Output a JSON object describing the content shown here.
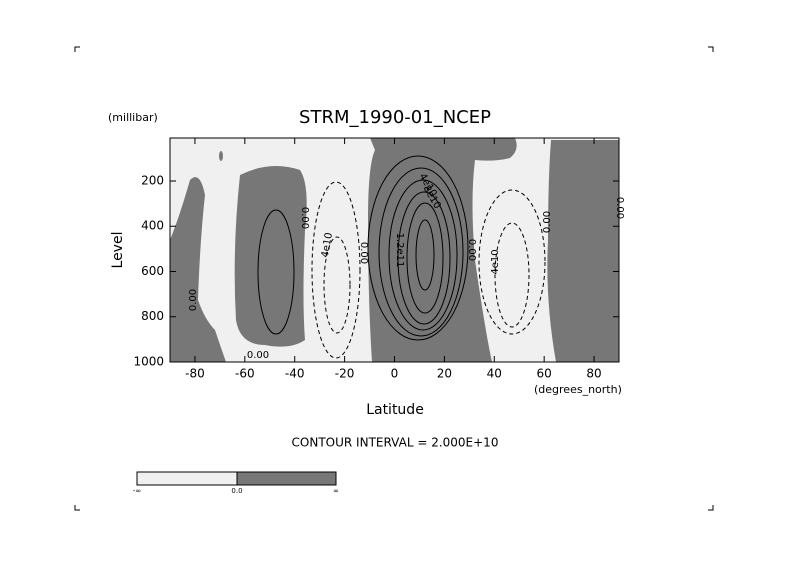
{
  "chart_data": {
    "type": "contour",
    "title": "STRM_1990-01_NCEP",
    "y_unit": "(millibar)",
    "y_label": "Level",
    "x_label": "Latitude",
    "x_unit": "(degrees_north)",
    "note": "CONTOUR INTERVAL = 2.000E+10",
    "xlim": [
      -90,
      90
    ],
    "xticks": [
      -80,
      -60,
      -40,
      -20,
      0,
      20,
      40,
      60,
      80
    ],
    "ylim": [
      1000,
      10
    ],
    "yticks": [
      200,
      400,
      600,
      800,
      1000
    ],
    "contour_labels": [
      "0.00",
      "0.00",
      "0.00",
      "4e10",
      "0.00",
      "1.2e11",
      "8e10",
      "4e10",
      "0.00",
      "4e10",
      "0.00",
      "0.00"
    ],
    "colorbar_labels": [
      "-∞",
      "0.0",
      "∞"
    ]
  }
}
